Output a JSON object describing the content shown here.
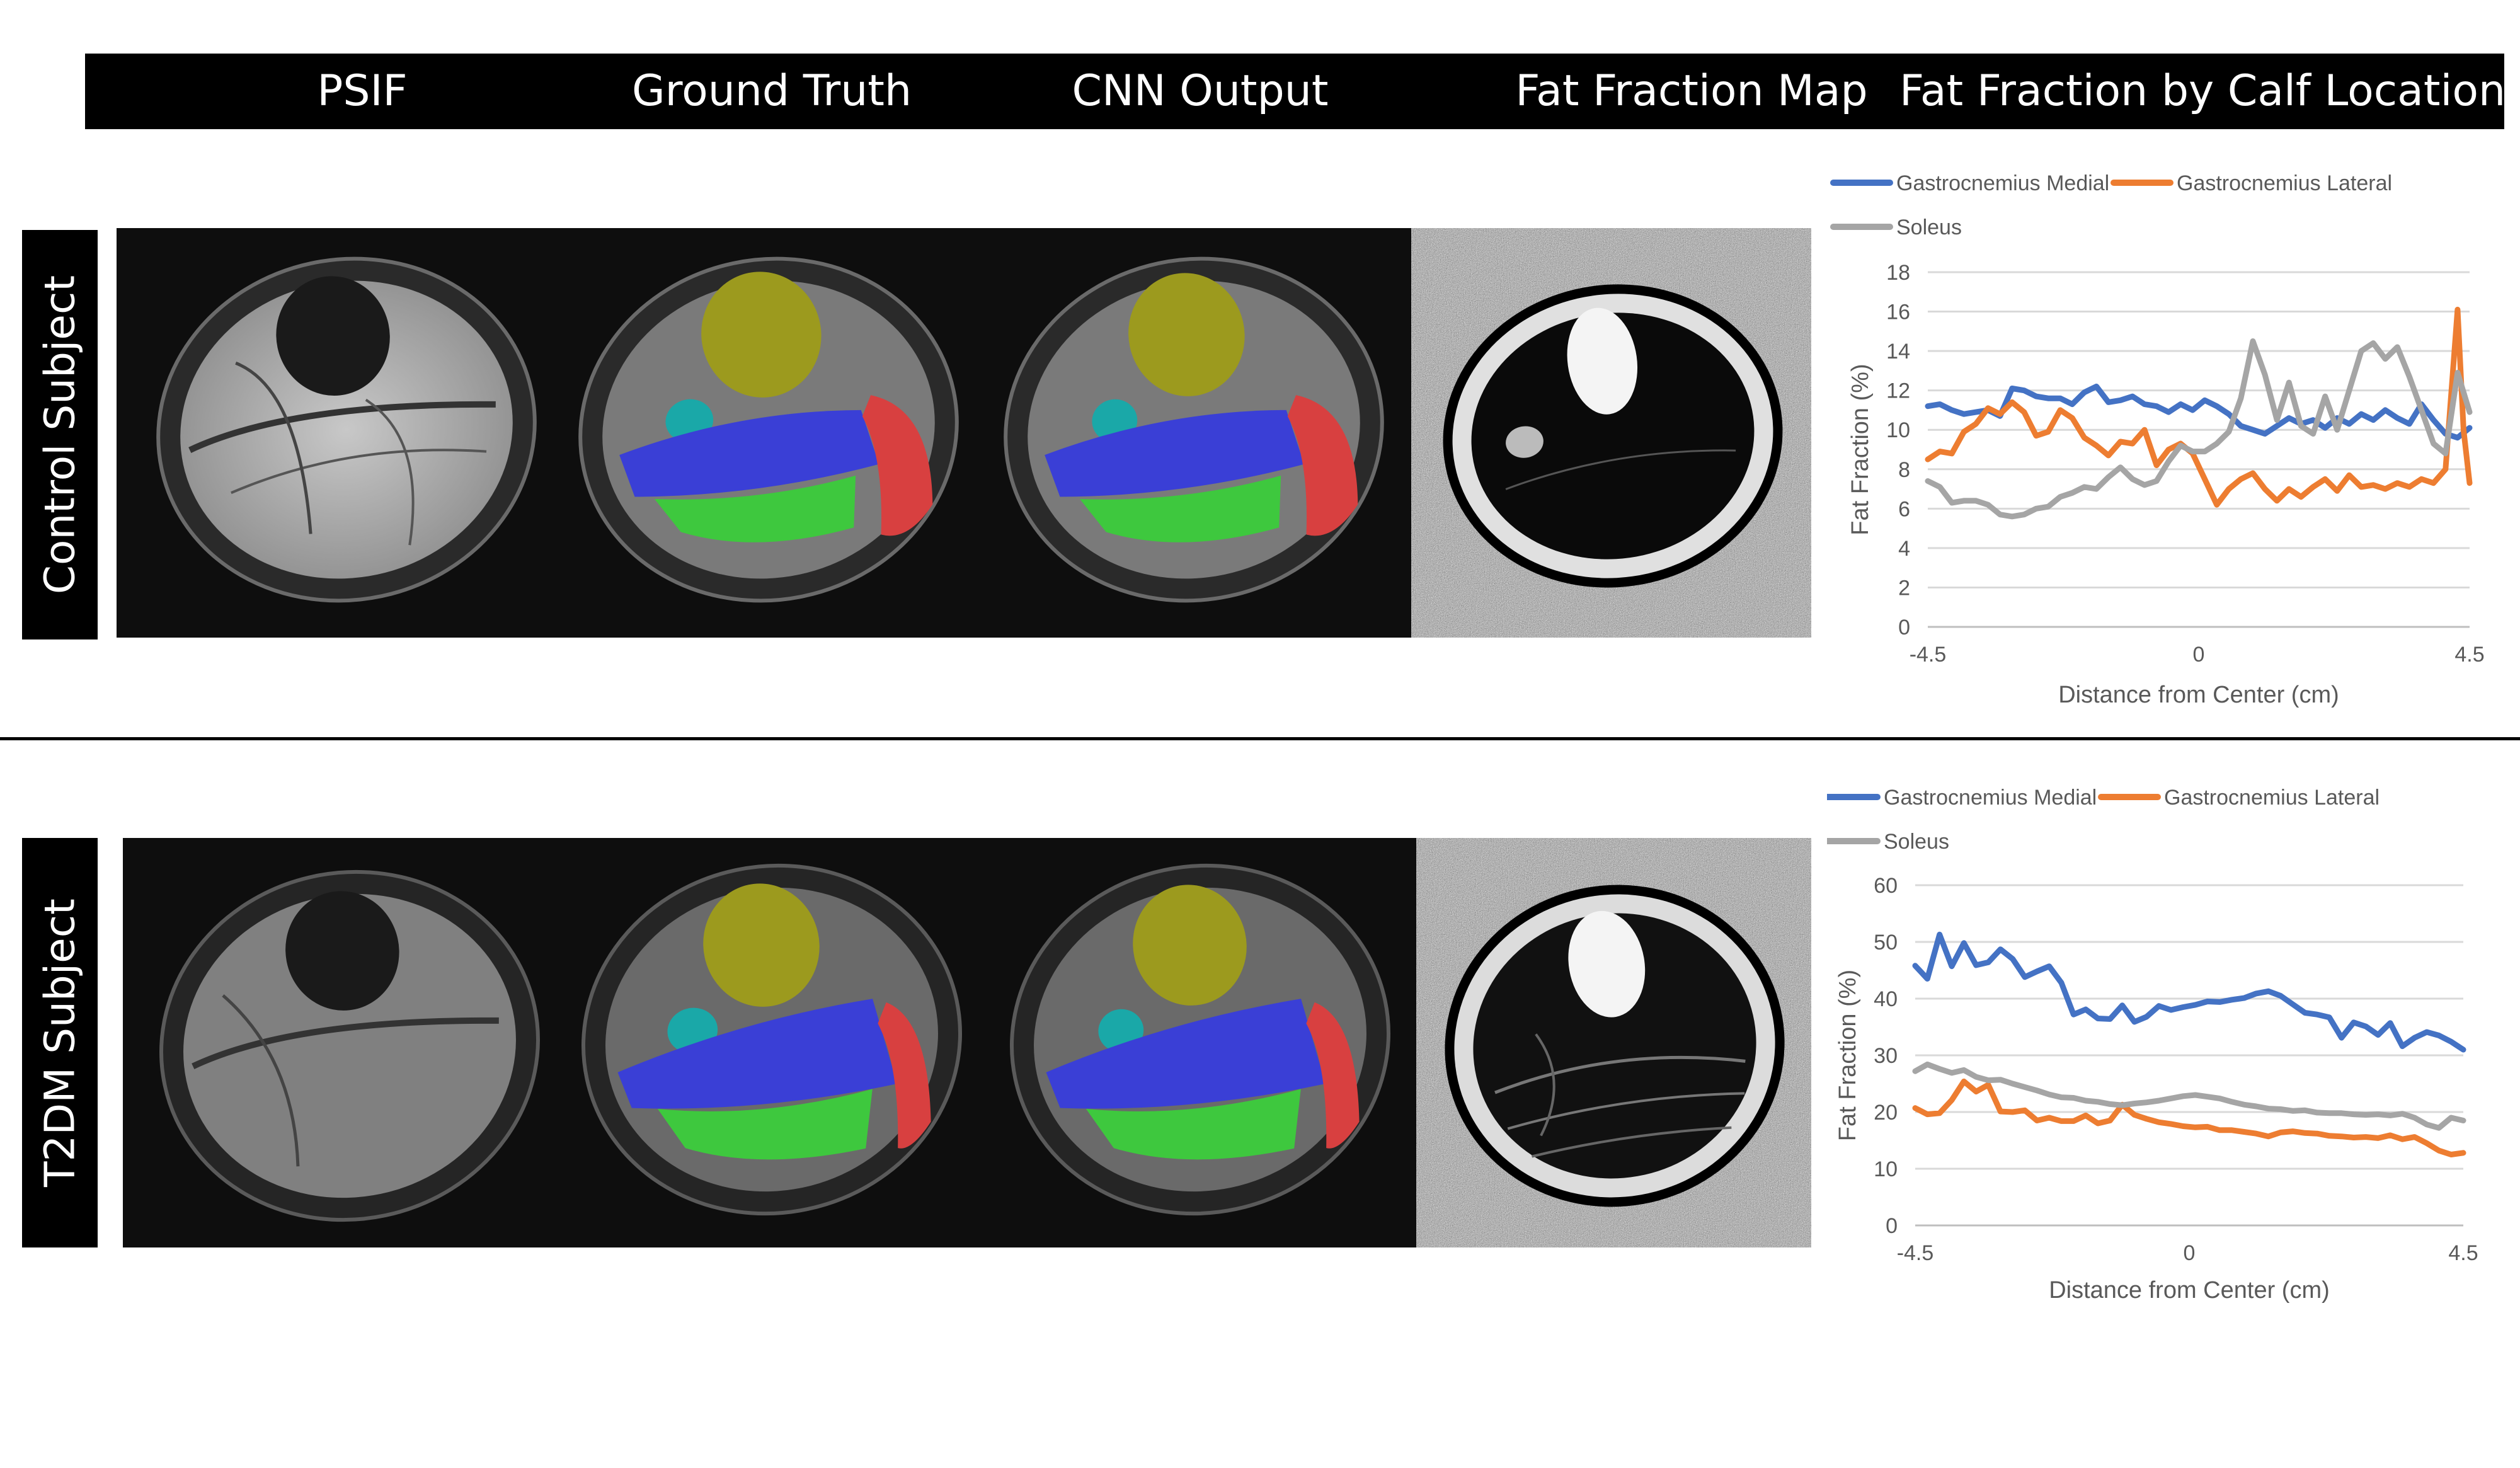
{
  "headers": [
    "PSIF",
    "Ground Truth",
    "CNN Output",
    "Fat Fraction Map",
    "Fat Fraction by Calf Location"
  ],
  "row_labels": [
    "Control Subject",
    "T2DM Subject"
  ],
  "colors": {
    "medial": "#4472C4",
    "lateral": "#ED7D31",
    "soleus": "#A5A5A5",
    "seg_yellow": "#9c9a1e",
    "seg_blue": "#3a3fd6",
    "seg_green": "#3ec83e",
    "seg_red": "#d84040",
    "seg_cyan": "#1aa8a8"
  },
  "chart_data": [
    {
      "type": "line",
      "title": "",
      "xlabel": "Distance from Center (cm)",
      "ylabel": "Fat Fraction (%)",
      "ylim": [
        0,
        18
      ],
      "yticks": [
        "0",
        "2",
        "4",
        "6",
        "8",
        "10",
        "12",
        "14",
        "16",
        "18"
      ],
      "xlim": [
        -4.5,
        4.5
      ],
      "xticks": [
        "-4.5",
        "0",
        "4.5"
      ],
      "legend_position": "top",
      "grid": true,
      "series": [
        {
          "name": "Gastrocnemius Medial",
          "color_key": "medial",
          "x": [
            -4.5,
            -4.3,
            -4.1,
            -3.9,
            -3.7,
            -3.5,
            -3.3,
            -3.1,
            -2.9,
            -2.7,
            -2.5,
            -2.3,
            -2.1,
            -1.9,
            -1.7,
            -1.5,
            -1.3,
            -1.1,
            -0.9,
            -0.7,
            -0.5,
            -0.3,
            -0.1,
            0.1,
            0.3,
            0.5,
            0.7,
            0.9,
            1.1,
            1.3,
            1.5,
            1.7,
            1.9,
            2.1,
            2.3,
            2.5,
            2.7,
            2.9,
            3.1,
            3.3,
            3.5,
            3.7,
            3.9,
            4.1,
            4.3,
            4.5
          ],
          "y": [
            11.2,
            11.3,
            11.0,
            10.8,
            10.9,
            11.0,
            10.7,
            12.1,
            12.0,
            11.7,
            11.6,
            11.6,
            11.3,
            11.9,
            12.2,
            11.4,
            11.5,
            11.7,
            11.3,
            11.2,
            10.9,
            11.3,
            11.0,
            11.5,
            11.2,
            10.8,
            10.2,
            10.0,
            9.8,
            10.2,
            10.6,
            10.3,
            10.5,
            10.1,
            10.6,
            10.3,
            10.8,
            10.5,
            11.0,
            10.6,
            10.3,
            11.3,
            10.5,
            9.8,
            9.6,
            10.1
          ]
        },
        {
          "name": "Gastrocnemius Lateral",
          "color_key": "lateral",
          "x": [
            -4.5,
            -4.3,
            -4.1,
            -3.9,
            -3.7,
            -3.5,
            -3.3,
            -3.1,
            -2.9,
            -2.7,
            -2.5,
            -2.3,
            -2.1,
            -1.9,
            -1.7,
            -1.5,
            -1.3,
            -1.1,
            -0.9,
            -0.7,
            -0.5,
            -0.3,
            -0.1,
            0.1,
            0.3,
            0.5,
            0.7,
            0.9,
            1.1,
            1.3,
            1.5,
            1.7,
            1.9,
            2.1,
            2.3,
            2.5,
            2.7,
            2.9,
            3.1,
            3.3,
            3.5,
            3.7,
            3.9,
            4.1,
            4.3,
            4.4,
            4.5
          ],
          "y": [
            8.5,
            8.9,
            8.8,
            9.9,
            10.3,
            11.1,
            10.8,
            11.4,
            10.9,
            9.7,
            9.9,
            11.0,
            10.6,
            9.6,
            9.2,
            8.7,
            9.4,
            9.3,
            10.0,
            8.2,
            9.0,
            9.3,
            8.8,
            7.5,
            6.2,
            7.0,
            7.5,
            7.8,
            7.0,
            6.4,
            7.0,
            6.6,
            7.1,
            7.5,
            6.9,
            7.7,
            7.1,
            7.2,
            7.0,
            7.3,
            7.1,
            7.5,
            7.3,
            8.0,
            16.1,
            10.0,
            7.3
          ]
        },
        {
          "name": "Soleus",
          "color_key": "soleus",
          "x": [
            -4.5,
            -4.3,
            -4.1,
            -3.9,
            -3.7,
            -3.5,
            -3.3,
            -3.1,
            -2.9,
            -2.7,
            -2.5,
            -2.3,
            -2.1,
            -1.9,
            -1.7,
            -1.5,
            -1.3,
            -1.1,
            -0.9,
            -0.7,
            -0.5,
            -0.3,
            -0.1,
            0.1,
            0.3,
            0.5,
            0.7,
            0.9,
            1.1,
            1.3,
            1.5,
            1.7,
            1.9,
            2.1,
            2.3,
            2.5,
            2.7,
            2.9,
            3.1,
            3.3,
            3.5,
            3.7,
            3.9,
            4.1,
            4.3,
            4.5
          ],
          "y": [
            7.4,
            7.1,
            6.3,
            6.4,
            6.4,
            6.2,
            5.7,
            5.6,
            5.7,
            6.0,
            6.1,
            6.6,
            6.8,
            7.1,
            7.0,
            7.6,
            8.1,
            7.5,
            7.2,
            7.4,
            8.4,
            9.2,
            8.9,
            8.9,
            9.3,
            9.9,
            11.6,
            14.5,
            12.8,
            10.5,
            12.4,
            10.2,
            9.8,
            11.7,
            10.0,
            12.0,
            14.0,
            14.4,
            13.6,
            14.2,
            12.7,
            11.0,
            9.3,
            8.8,
            12.9,
            10.9
          ]
        }
      ]
    },
    {
      "type": "line",
      "title": "",
      "xlabel": "Distance from Center (cm)",
      "ylabel": "Fat Fraction (%)",
      "ylim": [
        0,
        60
      ],
      "yticks": [
        "0",
        "10",
        "20",
        "30",
        "40",
        "50",
        "60"
      ],
      "xlim": [
        -4.5,
        4.5
      ],
      "xticks": [
        "-4.5",
        "0",
        "4.5"
      ],
      "legend_position": "top",
      "grid": true,
      "series": [
        {
          "name": "Gastrocnemius Medial",
          "color_key": "medial",
          "x": [
            -4.5,
            -4.3,
            -4.1,
            -3.9,
            -3.7,
            -3.5,
            -3.3,
            -3.1,
            -2.9,
            -2.7,
            -2.5,
            -2.3,
            -2.1,
            -1.9,
            -1.7,
            -1.5,
            -1.3,
            -1.1,
            -0.9,
            -0.7,
            -0.5,
            -0.3,
            -0.1,
            0.1,
            0.3,
            0.5,
            0.7,
            0.9,
            1.1,
            1.3,
            1.5,
            1.7,
            1.9,
            2.1,
            2.3,
            2.5,
            2.7,
            2.9,
            3.1,
            3.3,
            3.5,
            3.7,
            3.9,
            4.1,
            4.3,
            4.5
          ],
          "y": [
            45.8,
            43.5,
            51.3,
            45.7,
            49.8,
            45.9,
            46.4,
            48.7,
            47.0,
            43.8,
            44.8,
            45.7,
            42.8,
            37.2,
            38.1,
            36.5,
            36.4,
            38.8,
            35.9,
            36.8,
            38.7,
            38.0,
            38.5,
            38.9,
            39.5,
            39.4,
            39.8,
            40.1,
            40.9,
            41.3,
            40.5,
            39.0,
            37.5,
            37.2,
            36.7,
            33.1,
            35.8,
            35.1,
            33.6,
            35.7,
            31.6,
            33.1,
            34.1,
            33.5,
            32.4,
            31.0
          ]
        },
        {
          "name": "Gastrocnemius Lateral",
          "color_key": "lateral",
          "x": [
            -4.5,
            -4.3,
            -4.1,
            -3.9,
            -3.7,
            -3.5,
            -3.3,
            -3.1,
            -2.9,
            -2.7,
            -2.5,
            -2.3,
            -2.1,
            -1.9,
            -1.7,
            -1.5,
            -1.3,
            -1.1,
            -0.9,
            -0.7,
            -0.5,
            -0.3,
            -0.1,
            0.1,
            0.3,
            0.5,
            0.7,
            0.9,
            1.1,
            1.3,
            1.5,
            1.7,
            1.9,
            2.1,
            2.3,
            2.5,
            2.7,
            2.9,
            3.1,
            3.3,
            3.5,
            3.7,
            3.9,
            4.1,
            4.3,
            4.5
          ],
          "y": [
            20.7,
            19.6,
            19.8,
            22.1,
            25.4,
            23.6,
            24.8,
            20.1,
            20.0,
            20.3,
            18.5,
            19.0,
            18.4,
            18.4,
            19.4,
            18.0,
            18.5,
            21.3,
            19.5,
            18.8,
            18.2,
            17.9,
            17.5,
            17.3,
            17.4,
            16.8,
            16.8,
            16.5,
            16.2,
            15.7,
            16.4,
            16.6,
            16.3,
            16.2,
            15.8,
            15.7,
            15.5,
            15.6,
            15.4,
            15.9,
            15.2,
            15.6,
            14.5,
            13.2,
            12.5,
            12.8
          ]
        },
        {
          "name": "Soleus",
          "color_key": "soleus",
          "x": [
            -4.5,
            -4.3,
            -4.1,
            -3.9,
            -3.7,
            -3.5,
            -3.3,
            -3.1,
            -2.9,
            -2.7,
            -2.5,
            -2.3,
            -2.1,
            -1.9,
            -1.7,
            -1.5,
            -1.3,
            -1.1,
            -0.9,
            -0.7,
            -0.5,
            -0.3,
            -0.1,
            0.1,
            0.3,
            0.5,
            0.7,
            0.9,
            1.1,
            1.3,
            1.5,
            1.7,
            1.9,
            2.1,
            2.3,
            2.5,
            2.7,
            2.9,
            3.1,
            3.3,
            3.5,
            3.7,
            3.9,
            4.1,
            4.3,
            4.5
          ],
          "y": [
            27.2,
            28.4,
            27.6,
            26.9,
            27.4,
            26.2,
            25.6,
            25.7,
            25.0,
            24.4,
            23.8,
            23.1,
            22.6,
            22.5,
            22.0,
            21.8,
            21.4,
            21.2,
            21.5,
            21.7,
            22.0,
            22.4,
            22.8,
            23.0,
            22.7,
            22.4,
            21.8,
            21.3,
            21.0,
            20.6,
            20.5,
            20.2,
            20.3,
            19.9,
            19.8,
            19.8,
            19.6,
            19.5,
            19.6,
            19.4,
            19.7,
            19.0,
            17.8,
            17.2,
            19.0,
            18.5
          ]
        }
      ]
    }
  ]
}
